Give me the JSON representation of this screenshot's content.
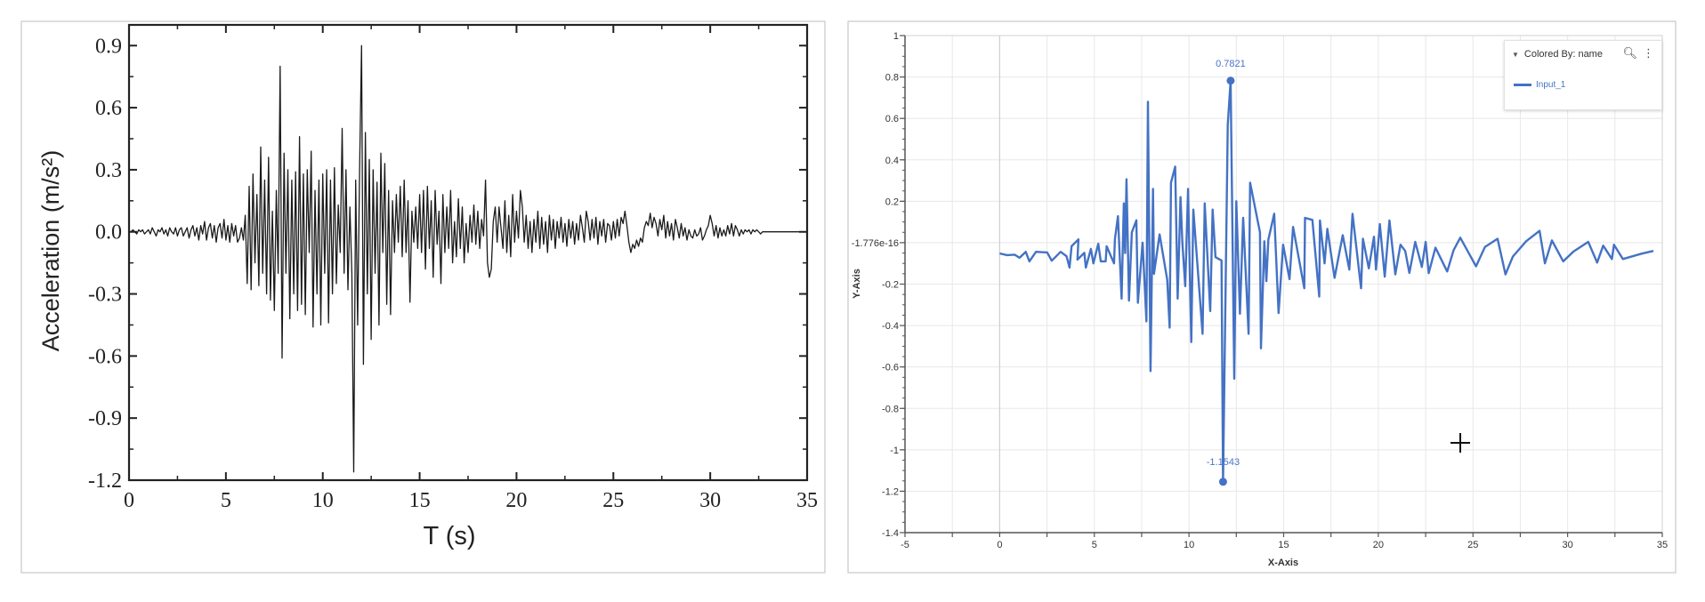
{
  "chart_data": [
    {
      "type": "line",
      "title": "",
      "xlabel": "T (s)",
      "ylabel": "Acceleration (m/s²)",
      "xlim": [
        0,
        35
      ],
      "ylim": [
        -1.2,
        1.0
      ],
      "grid": false,
      "xticks": [
        "0",
        "5",
        "10",
        "15",
        "20",
        "25",
        "30",
        "35"
      ],
      "yticks": [
        "0.9",
        "0.6",
        "0.3",
        "0.0",
        "-0.3",
        "-0.6",
        "-0.9",
        "-1.2"
      ],
      "line_color": "#1a1a1a",
      "x_start": 0,
      "x_step": 0.1,
      "y": [
        0,
        0,
        0.01,
        0,
        -0.01,
        0.01,
        0,
        0.01,
        -0.01,
        0,
        0.01,
        -0.01,
        0.02,
        0,
        -0.02,
        0.01,
        0,
        0.02,
        -0.01,
        0.01,
        -0.02,
        0.02,
        0,
        -0.01,
        0.02,
        -0.02,
        0.01,
        0.02,
        -0.02,
        0,
        0.02,
        -0.03,
        0.01,
        0.03,
        -0.02,
        0.02,
        -0.04,
        0.03,
        -0.01,
        0.05,
        -0.04,
        0.02,
        0.04,
        -0.03,
        0.03,
        -0.05,
        0.02,
        0.04,
        -0.03,
        0.06,
        -0.04,
        0.03,
        -0.05,
        0.04,
        -0.02,
        0.03,
        -0.05,
        -0.03,
        0.02,
        -0.04,
        0.08,
        -0.25,
        0.22,
        -0.28,
        0.28,
        -0.15,
        0.18,
        -0.26,
        0.41,
        -0.2,
        0.25,
        -0.3,
        0.36,
        -0.33,
        0.1,
        -0.38,
        0.2,
        -0.2,
        0.8,
        -0.61,
        0.38,
        -0.2,
        0.3,
        -0.42,
        0.25,
        -0.3,
        0.29,
        -0.38,
        0.46,
        -0.35,
        0.28,
        -0.4,
        0.3,
        -0.1,
        0.39,
        -0.46,
        0.2,
        -0.3,
        0.25,
        -0.45,
        0.28,
        -0.2,
        0.3,
        -0.44,
        0.25,
        -0.3,
        0.31,
        -0.25,
        0.13,
        -0.1,
        0.5,
        -0.2,
        0.3,
        -0.28,
        0.12,
        -0.2,
        -1.16,
        0.25,
        -0.45,
        0.3,
        0.9,
        -0.64,
        0.48,
        -0.3,
        0.35,
        -0.52,
        0.3,
        -0.2,
        0.24,
        -0.45,
        0.38,
        -0.1,
        0.33,
        -0.35,
        0.2,
        -0.4,
        0.15,
        -0.1,
        0.18,
        -0.05,
        0.22,
        -0.12,
        0.25,
        -0.1,
        0.15,
        -0.34,
        0.1,
        -0.05,
        0.12,
        -0.08,
        0.18,
        -0.1,
        0.2,
        -0.18,
        0.22,
        -0.08,
        0.15,
        -0.22,
        0.2,
        -0.06,
        0.1,
        -0.25,
        0.18,
        -0.1,
        0.12,
        -0.08,
        0.2,
        -0.15,
        0.05,
        -0.12,
        0.16,
        -0.08,
        0.12,
        -0.15,
        0.04,
        -0.1,
        0.08,
        -0.05,
        0.13,
        -0.06,
        0.1,
        -0.08,
        0.06,
        -0.02,
        0.25,
        -0.15,
        -0.22,
        -0.18,
        0.05,
        0.12,
        -0.05,
        0.12,
        0.02,
        -0.08,
        0.15,
        -0.1,
        0.08,
        -0.12,
        0.18,
        -0.05,
        0.1,
        -0.03,
        0.2,
        0.12,
        -0.05,
        0.08,
        -0.08,
        0.05,
        -0.1,
        0.06,
        -0.05,
        0.1,
        -0.08,
        0.07,
        -0.06,
        0.05,
        -0.1,
        0.08,
        -0.04,
        0.06,
        -0.08,
        0.05,
        -0.03,
        0.07,
        -0.05,
        0.04,
        -0.07,
        0.06,
        -0.03,
        0.05,
        -0.06,
        0.04,
        -0.04,
        0.08,
        0.02,
        -0.05,
        0.1,
        0.05,
        -0.04,
        0.06,
        -0.03,
        0.07,
        -0.06,
        0.05,
        -0.02,
        0.06,
        -0.05,
        0.04,
        0.03,
        -0.04,
        0.05,
        -0.03,
        0.06,
        -0.02,
        0.07,
        0.04,
        0.1,
        0.03,
        -0.05,
        -0.1,
        -0.06,
        -0.08,
        -0.04,
        -0.07,
        -0.03,
        -0.05,
        0.02,
        0.05,
        0.03,
        0.09,
        0.02,
        0.07,
        0.04,
        -0.02,
        0.06,
        0.01,
        0.08,
        -0.03,
        0.05,
        -0.02,
        0.04,
        -0.04,
        0.06,
        0.02,
        -0.03,
        0.04,
        -0.02,
        0.02,
        -0.04,
        0.01,
        -0.02,
        -0.03,
        0.01,
        -0.02,
        -0.01,
        0.02,
        -0.04,
        -0.02,
        0.01,
        0.03,
        0.08,
        0.04,
        -0.02,
        0.03,
        -0.03,
        0.02,
        -0.02,
        0.01,
        -0.02,
        0.03,
        -0.01,
        0.04,
        -0.02,
        0.03,
        0.01,
        -0.02,
        0.01,
        -0.01,
        0.01,
        0,
        0.01,
        -0.01,
        0.01,
        0,
        0.01,
        0,
        -0.01,
        0,
        0,
        0,
        0,
        0,
        0,
        0,
        0,
        0,
        0,
        0,
        0,
        0,
        0,
        0,
        0,
        0,
        0,
        0,
        0,
        0,
        0,
        0,
        0
      ]
    },
    {
      "type": "line",
      "title": "",
      "xlabel": "X-Axis",
      "ylabel": "Y-Axis",
      "xlim": [
        -5,
        35
      ],
      "ylim": [
        -1.4,
        1.0
      ],
      "grid": true,
      "xticks": [
        "-5",
        "0",
        "5",
        "10",
        "15",
        "20",
        "25",
        "30",
        "35"
      ],
      "yticks": [
        "1",
        "0.8",
        "0.6",
        "0.4",
        "0.2",
        "-1.776e-16",
        "-0.2",
        "-0.4",
        "-0.6",
        "-0.8",
        "-1",
        "-1.2",
        "-1.4"
      ],
      "legend": {
        "header": "Colored By: name",
        "position": "top-right",
        "search_icon": "search-icon",
        "menu_icon": "kebab-menu-icon"
      },
      "series": [
        {
          "name": "Input_1",
          "color": "#4472c4",
          "x": [
            0,
            0.39,
            0.79,
            1.05,
            1.38,
            1.57,
            1.92,
            2.51,
            2.75,
            3.22,
            3.53,
            3.69,
            3.8,
            4.16,
            4.11,
            4.47,
            4.55,
            4.82,
            4.95,
            5.21,
            5.34,
            5.6,
            5.65,
            6.04,
            6.09,
            6.25,
            6.44,
            6.56,
            6.63,
            6.7,
            6.83,
            6.98,
            7.22,
            7.3,
            7.55,
            7.75,
            7.83,
            7.97,
            8.1,
            8.15,
            8.45,
            8.85,
            8.98,
            9.05,
            9.27,
            9.4,
            9.55,
            9.65,
            9.8,
            9.95,
            10.12,
            10.23,
            10.72,
            10.83,
            11.12,
            11.25,
            11.4,
            11.72,
            11.8,
            12.05,
            12.2,
            12.39,
            12.5,
            12.69,
            12.86,
            13.15,
            13.23,
            13.75,
            13.8,
            13.98,
            14.09,
            14.19,
            14.5,
            14.73,
            14.97,
            15.31,
            15.5,
            16.09,
            16.13,
            16.52,
            16.88,
            16.92,
            17.16,
            17.31,
            17.69,
            18.12,
            18.47,
            18.64,
            19.09,
            19.19,
            19.5,
            19.77,
            19.88,
            20.08,
            20.34,
            20.59,
            20.9,
            21.17,
            21.42,
            21.64,
            21.95,
            22.3,
            22.5,
            22.66,
            23.02,
            23.64,
            23.98,
            24.33,
            25.16,
            25.63,
            26.3,
            26.72,
            27.11,
            27.81,
            28.52,
            28.8,
            29.17,
            29.77,
            30.31,
            31.09,
            31.56,
            31.88,
            32.34,
            32.45,
            32.92,
            33.9,
            34.53
          ],
          "y": [
            -0.052,
            -0.06,
            -0.058,
            -0.073,
            -0.044,
            -0.09,
            -0.044,
            -0.047,
            -0.087,
            -0.044,
            -0.065,
            -0.12,
            -0.017,
            0.016,
            -0.082,
            -0.049,
            -0.12,
            -0.03,
            -0.1,
            -0.005,
            -0.09,
            -0.09,
            -0.017,
            -0.1,
            0.017,
            0.128,
            -0.27,
            0.19,
            -0.05,
            0.306,
            -0.28,
            0.05,
            0.108,
            -0.29,
            0.0,
            -0.38,
            0.68,
            -0.62,
            0.26,
            -0.15,
            0.04,
            -0.18,
            -0.41,
            0.29,
            0.367,
            -0.27,
            0.22,
            0.0,
            -0.21,
            0.26,
            -0.48,
            0.16,
            -0.44,
            0.19,
            -0.33,
            0.16,
            -0.07,
            -0.086,
            -1.1543,
            0.57,
            0.7821,
            -0.657,
            0.2,
            -0.343,
            0.12,
            -0.44,
            0.29,
            0.05,
            -0.51,
            0.007,
            -0.186,
            0.014,
            0.14,
            -0.34,
            -0.01,
            -0.176,
            0.076,
            -0.22,
            0.12,
            0.11,
            -0.26,
            0.107,
            -0.1,
            0.067,
            -0.17,
            0.036,
            -0.13,
            0.139,
            -0.22,
            0.019,
            -0.124,
            0.029,
            -0.13,
            0.09,
            -0.164,
            0.107,
            -0.153,
            -0.01,
            -0.04,
            -0.146,
            0.004,
            -0.117,
            0.004,
            -0.147,
            -0.024,
            -0.139,
            -0.036,
            0.024,
            -0.114,
            -0.021,
            0.019,
            -0.153,
            -0.067,
            0.007,
            0.057,
            -0.1,
            0.011,
            -0.09,
            -0.043,
            0.004,
            -0.096,
            -0.014,
            -0.079,
            -0.01,
            -0.079,
            -0.053,
            -0.04
          ]
        }
      ],
      "annotations": [
        {
          "label": "0.7821",
          "x": 12.2,
          "y": 0.7821,
          "kind": "max"
        },
        {
          "label": "-1.1543",
          "x": 11.8,
          "y": -1.1543,
          "kind": "min"
        }
      ],
      "cursor": {
        "icon": "crosshair-icon"
      }
    }
  ]
}
